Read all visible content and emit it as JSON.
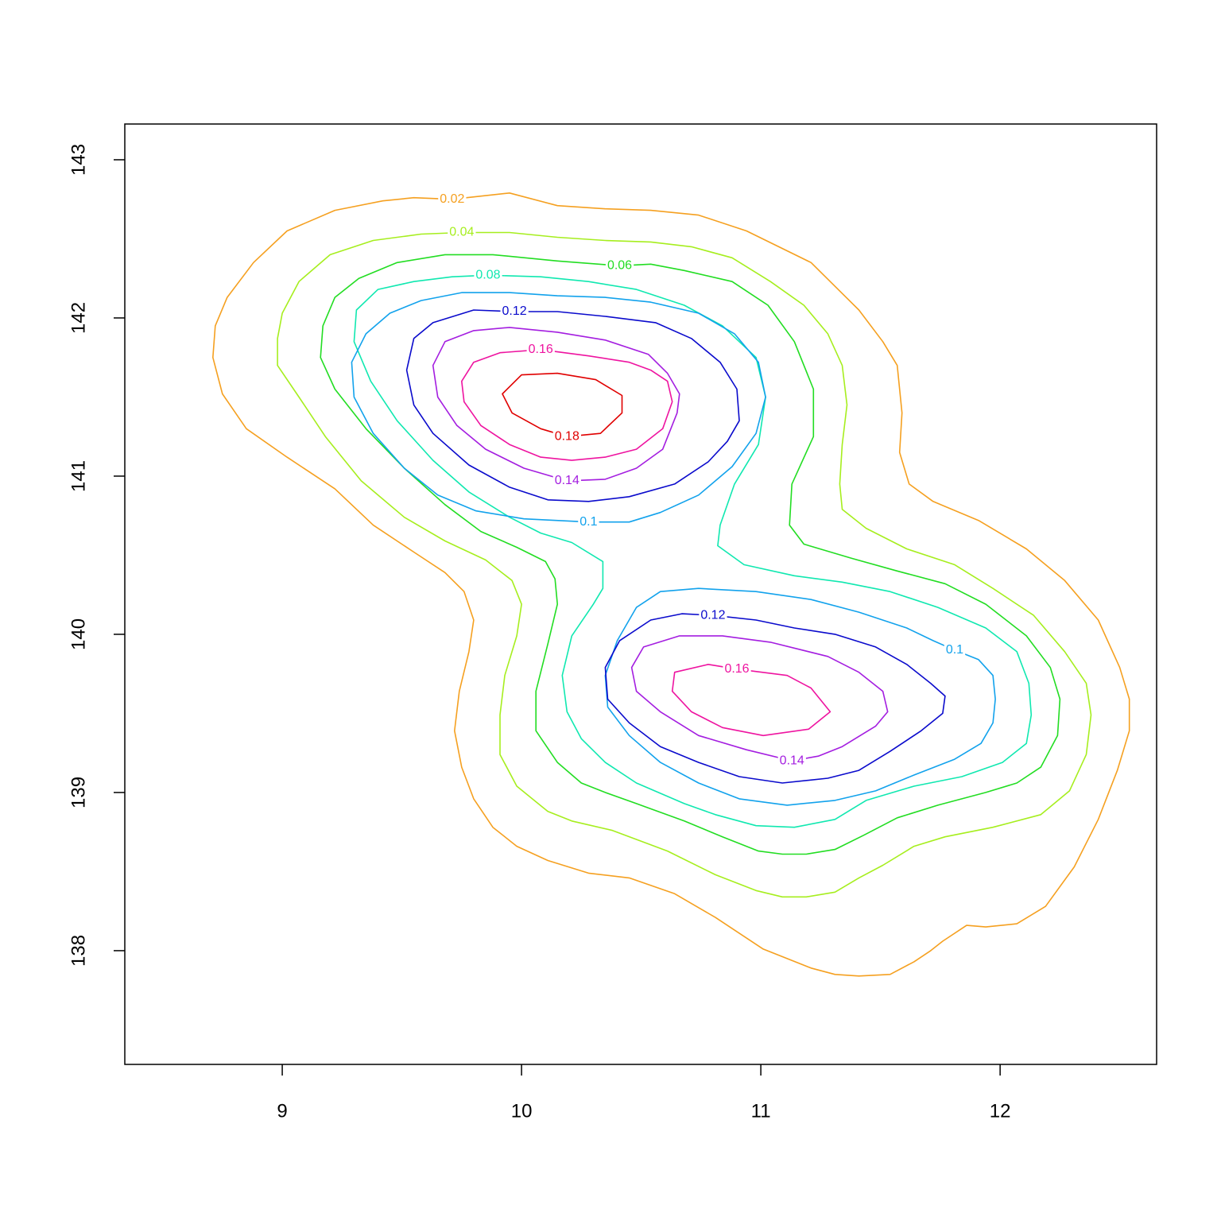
{
  "chart_data": {
    "type": "contour",
    "xlim": [
      8.342,
      12.654
    ],
    "ylim": [
      137.281,
      143.226
    ],
    "xticks": [
      9,
      10,
      11,
      12
    ],
    "yticks": [
      138,
      139,
      140,
      141,
      142,
      143
    ],
    "series": [
      {
        "level": 0.02,
        "color": "#f5a020",
        "x": [
          9.71,
          9.95,
          10.15,
          10.35,
          10.54,
          10.74,
          10.94,
          11.21,
          11.41,
          11.51,
          11.57,
          11.59,
          11.58,
          11.62,
          11.72,
          11.91,
          12.11,
          12.27,
          12.41,
          12.5,
          12.54,
          12.54,
          12.49,
          12.41,
          12.31,
          12.19,
          12.07,
          11.94,
          11.86,
          11.76,
          11.71,
          11.64,
          11.54,
          11.41,
          11.31,
          11.21,
          11.01,
          10.81,
          10.64,
          10.45,
          10.28,
          10.11,
          9.98,
          9.88,
          9.8,
          9.75,
          9.72,
          9.74,
          9.78,
          9.8,
          9.76,
          9.68,
          9.55,
          9.38,
          9.22,
          9.02,
          8.85,
          8.75,
          8.71,
          8.72,
          8.77,
          8.88,
          9.02,
          9.22,
          9.42,
          9.55
        ],
        "y": [
          142.75,
          142.79,
          142.71,
          142.69,
          142.68,
          142.65,
          142.55,
          142.35,
          142.05,
          141.85,
          141.7,
          141.4,
          141.15,
          140.95,
          140.84,
          140.72,
          140.54,
          140.34,
          140.09,
          139.79,
          139.59,
          139.39,
          139.14,
          138.83,
          138.53,
          138.28,
          138.17,
          138.15,
          138.16,
          138.06,
          138,
          137.93,
          137.85,
          137.84,
          137.85,
          137.89,
          138.01,
          138.21,
          138.36,
          138.46,
          138.49,
          138.57,
          138.66,
          138.78,
          138.96,
          139.16,
          139.39,
          139.64,
          139.89,
          140.09,
          140.27,
          140.39,
          140.52,
          140.69,
          140.92,
          141.12,
          141.3,
          141.52,
          141.75,
          141.95,
          142.13,
          142.35,
          142.55,
          142.68,
          142.74,
          142.76
        ]
      },
      {
        "level": 0.04,
        "color": "#a6ee1e",
        "x": [
          9.75,
          9.95,
          10.15,
          10.35,
          10.54,
          10.71,
          10.88,
          11.04,
          11.18,
          11.28,
          11.34,
          11.36,
          11.34,
          11.33,
          11.34,
          11.44,
          11.61,
          11.81,
          11.97,
          12.14,
          12.27,
          12.36,
          12.38,
          12.36,
          12.29,
          12.17,
          11.97,
          11.77,
          11.64,
          11.51,
          11.41,
          11.31,
          11.19,
          11.09,
          10.98,
          10.81,
          10.61,
          10.38,
          10.21,
          10.11,
          9.98,
          9.91,
          9.91,
          9.93,
          9.98,
          10,
          9.96,
          9.85,
          9.68,
          9.51,
          9.33,
          9.18,
          9.07,
          8.98,
          8.98,
          9,
          9.07,
          9.2,
          9.38,
          9.58
        ],
        "y": [
          142.54,
          142.54,
          142.51,
          142.49,
          142.48,
          142.45,
          142.38,
          142.23,
          142.08,
          141.9,
          141.7,
          141.45,
          141.2,
          140.95,
          140.79,
          140.67,
          140.54,
          140.44,
          140.29,
          140.12,
          139.89,
          139.69,
          139.49,
          139.24,
          139.01,
          138.86,
          138.78,
          138.72,
          138.66,
          138.54,
          138.46,
          138.37,
          138.34,
          138.34,
          138.38,
          138.48,
          138.63,
          138.76,
          138.82,
          138.88,
          139.04,
          139.24,
          139.49,
          139.74,
          139.99,
          140.19,
          140.34,
          140.47,
          140.59,
          140.74,
          140.97,
          141.25,
          141.5,
          141.7,
          141.87,
          142.03,
          142.23,
          142.4,
          142.49,
          142.53
        ]
      },
      {
        "level": 0.06,
        "color": "#22dd22",
        "x": [
          10.41,
          10.54,
          10.68,
          10.88,
          11.03,
          11.14,
          11.22,
          11.22,
          11.13,
          11.12,
          11.18,
          11.38,
          11.57,
          11.77,
          11.94,
          12.11,
          12.21,
          12.25,
          12.24,
          12.17,
          12.07,
          11.94,
          11.74,
          11.57,
          11.43,
          11.31,
          11.19,
          11.09,
          10.99,
          10.84,
          10.68,
          10.48,
          10.35,
          10.25,
          10.15,
          10.06,
          10.06,
          10.11,
          10.15,
          10.14,
          10.1,
          9.98,
          9.83,
          9.68,
          9.51,
          9.35,
          9.22,
          9.16,
          9.17,
          9.22,
          9.32,
          9.48,
          9.68,
          9.88,
          10.15
        ],
        "y": [
          142.33,
          142.34,
          142.3,
          142.23,
          142.08,
          141.85,
          141.55,
          141.25,
          140.95,
          140.69,
          140.57,
          140.48,
          140.4,
          140.32,
          140.19,
          139.99,
          139.79,
          139.59,
          139.36,
          139.16,
          139.06,
          139,
          138.92,
          138.84,
          138.73,
          138.64,
          138.61,
          138.61,
          138.63,
          138.72,
          138.82,
          138.93,
          139,
          139.06,
          139.19,
          139.39,
          139.64,
          139.94,
          140.19,
          140.35,
          140.46,
          140.55,
          140.65,
          140.82,
          141.05,
          141.3,
          141.55,
          141.75,
          141.95,
          142.13,
          142.25,
          142.35,
          142.4,
          142.4,
          142.36
        ]
      },
      {
        "level": 0.08,
        "color": "#10e8b0",
        "x": [
          9.86,
          10.08,
          10.28,
          10.48,
          10.68,
          10.84,
          10.98,
          11.02,
          10.99,
          10.89,
          10.83,
          10.82,
          10.93,
          11.14,
          11.34,
          11.54,
          11.74,
          11.94,
          12.07,
          12.12,
          12.13,
          12.11,
          12.01,
          11.84,
          11.64,
          11.44,
          11.31,
          11.14,
          10.98,
          10.81,
          10.68,
          10.48,
          10.35,
          10.25,
          10.19,
          10.17,
          10.21,
          10.3,
          10.34,
          10.34,
          10.21,
          10.08,
          9.95,
          9.78,
          9.63,
          9.48,
          9.37,
          9.3,
          9.31,
          9.4,
          9.55,
          9.71
        ],
        "y": [
          142.27,
          142.26,
          142.23,
          142.18,
          142.08,
          141.95,
          141.75,
          141.5,
          141.2,
          140.95,
          140.69,
          140.56,
          140.44,
          140.37,
          140.33,
          140.27,
          140.17,
          140.04,
          139.89,
          139.69,
          139.49,
          139.31,
          139.19,
          139.1,
          139.04,
          138.95,
          138.83,
          138.78,
          138.79,
          138.86,
          138.93,
          139.06,
          139.19,
          139.34,
          139.51,
          139.74,
          139.99,
          140.19,
          140.29,
          140.46,
          140.58,
          140.64,
          140.74,
          140.9,
          141.1,
          141.35,
          141.6,
          141.85,
          142.05,
          142.18,
          142.23,
          142.26
        ]
      },
      {
        "level": 0.1,
        "color": "#12a2ec",
        "x": [
          10.28,
          10.45,
          10.58,
          10.74,
          10.88,
          10.98,
          11.02,
          10.99,
          10.89,
          10.74,
          10.54,
          10.35,
          10.15,
          9.95,
          9.75,
          9.58,
          9.45,
          9.35,
          9.29,
          9.3,
          9.38,
          9.51,
          9.65,
          9.81,
          10.01,
          null,
          11.81,
          11.91,
          11.97,
          11.98,
          11.97,
          11.92,
          11.81,
          11.64,
          11.48,
          11.31,
          11.11,
          10.91,
          10.74,
          10.58,
          10.45,
          10.36,
          10.35,
          10.4,
          10.48,
          10.58,
          10.74,
          10.98,
          11.21,
          11.41,
          11.61,
          11.72
        ],
        "y": [
          140.71,
          140.71,
          140.77,
          140.88,
          141.06,
          141.27,
          141.5,
          141.72,
          141.9,
          142.03,
          142.1,
          142.13,
          142.14,
          142.16,
          142.16,
          142.11,
          142.03,
          141.9,
          141.72,
          141.5,
          141.27,
          141.05,
          140.88,
          140.78,
          140.73,
          null,
          139.9,
          139.84,
          139.74,
          139.59,
          139.44,
          139.31,
          139.21,
          139.11,
          139.01,
          138.95,
          138.92,
          138.96,
          139.06,
          139.19,
          139.36,
          139.54,
          139.74,
          139.96,
          140.17,
          140.27,
          140.29,
          140.27,
          140.22,
          140.14,
          140.04,
          139.96
        ]
      },
      {
        "level": 0.12,
        "color": "#0a0acc",
        "x": [
          9.97,
          10.15,
          10.35,
          10.56,
          10.71,
          10.83,
          10.9,
          10.91,
          10.86,
          10.78,
          10.64,
          10.45,
          10.28,
          10.11,
          9.95,
          9.78,
          9.63,
          9.55,
          9.52,
          9.55,
          9.63,
          9.8,
          null,
          10.8,
          10.98,
          11.14,
          11.31,
          11.48,
          11.61,
          11.71,
          11.77,
          11.76,
          11.67,
          11.54,
          11.41,
          11.28,
          11.09,
          10.91,
          10.74,
          10.58,
          10.45,
          10.36,
          10.35,
          10.41,
          10.54,
          10.67
        ],
        "y": [
          142.04,
          142.04,
          142.01,
          141.97,
          141.87,
          141.72,
          141.55,
          141.35,
          141.22,
          141.09,
          140.95,
          140.87,
          140.84,
          140.85,
          140.93,
          141.07,
          141.27,
          141.45,
          141.67,
          141.87,
          141.97,
          142.05,
          null,
          140.12,
          140.09,
          140.04,
          140,
          139.92,
          139.81,
          139.69,
          139.61,
          139.5,
          139.39,
          139.26,
          139.14,
          139.09,
          139.06,
          139.1,
          139.19,
          139.29,
          139.44,
          139.59,
          139.79,
          139.96,
          140.09,
          140.13
        ]
      },
      {
        "level": 0.14,
        "color": "#a41ee0",
        "x": [
          10.19,
          10.35,
          10.48,
          10.59,
          10.65,
          10.66,
          10.61,
          10.53,
          10.35,
          10.15,
          9.95,
          9.8,
          9.68,
          9.63,
          9.65,
          9.73,
          9.85,
          10.01,
          null,
          11.13,
          10.94,
          10.74,
          10.58,
          10.48,
          10.46,
          10.51,
          10.66,
          10.84,
          11.04,
          11.28,
          11.41,
          11.51,
          11.53,
          11.48,
          11.34,
          11.24
        ],
        "y": [
          140.97,
          140.98,
          141.05,
          141.17,
          141.4,
          141.52,
          141.65,
          141.77,
          141.86,
          141.91,
          141.94,
          141.92,
          141.85,
          141.7,
          141.5,
          141.32,
          141.17,
          141.05,
          null,
          139.2,
          139.27,
          139.36,
          139.51,
          139.64,
          139.79,
          139.92,
          139.99,
          139.99,
          139.95,
          139.86,
          139.76,
          139.64,
          139.51,
          139.42,
          139.29,
          139.23
        ]
      },
      {
        "level": 0.16,
        "color": "#ee14a0",
        "x": [
          10.08,
          10.28,
          10.45,
          10.54,
          10.61,
          10.63,
          10.59,
          10.48,
          10.35,
          10.21,
          10.08,
          9.95,
          9.83,
          9.76,
          9.75,
          9.8,
          9.91,
          null,
          10.9,
          11.11,
          11.21,
          11.29,
          11.2,
          11.01,
          10.84,
          10.71,
          10.63,
          10.64,
          10.78
        ],
        "y": [
          141.8,
          141.76,
          141.72,
          141.67,
          141.6,
          141.47,
          141.3,
          141.17,
          141.12,
          141.1,
          141.12,
          141.2,
          141.32,
          141.47,
          141.6,
          141.72,
          141.78,
          null,
          139.78,
          139.74,
          139.66,
          139.51,
          139.4,
          139.36,
          139.41,
          139.51,
          139.64,
          139.76,
          139.81
        ]
      },
      {
        "level": 0.18,
        "color": "#e00000",
        "x": [
          10.19,
          10.33,
          10.42,
          10.42,
          10.31,
          10.15,
          10,
          9.92,
          9.96,
          10.08
        ],
        "y": [
          141.25,
          141.27,
          141.4,
          141.51,
          141.61,
          141.65,
          141.64,
          141.52,
          141.4,
          141.3
        ]
      }
    ]
  }
}
